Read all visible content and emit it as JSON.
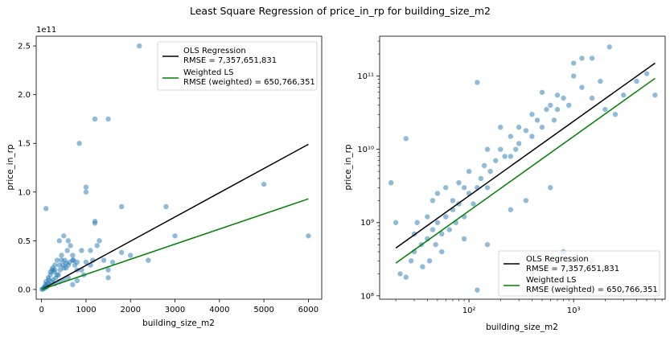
{
  "figure": {
    "title": "Least Square Regression of price_in_rp for building_size_m2"
  },
  "colors": {
    "points": "#1f77b4",
    "ols": "#000000",
    "wls": "#008000",
    "axes": "#000000",
    "background": "#ffffff"
  },
  "legend": {
    "ols_line1": "OLS Regression",
    "ols_line2": "RMSE = 7,357,651,831",
    "wls_line1": "Weighted LS",
    "wls_line2": "RMSE (weighted) = 650,766,351"
  },
  "chart_data": [
    {
      "type": "scatter",
      "title": "",
      "xlabel": "building_size_m2",
      "ylabel": "price_in_rp",
      "xlim": [
        -120,
        6300
      ],
      "ylim": [
        -0.1,
        2.6
      ],
      "y_offset_label": "1e11",
      "x_ticks": [
        "0",
        "1000",
        "2000",
        "3000",
        "4000",
        "5000",
        "6000"
      ],
      "y_ticks": [
        "0.0",
        "0.5",
        "1.0",
        "1.5",
        "2.0",
        "2.5"
      ],
      "y_unit": "1e11 rp",
      "legend_position": "top-right",
      "grid": false,
      "series": [
        {
          "name": "OLS Regression",
          "kind": "line",
          "x": [
            20,
            6000
          ],
          "y": [
            0.003,
            1.49
          ]
        },
        {
          "name": "Weighted LS",
          "kind": "line",
          "x": [
            20,
            6000
          ],
          "y": [
            0.003,
            0.93
          ]
        },
        {
          "kind": "points",
          "x": [
            10,
            30,
            50,
            60,
            80,
            90,
            100,
            120,
            140,
            160,
            180,
            200,
            220,
            240,
            260,
            280,
            300,
            320,
            350,
            380,
            400,
            420,
            450,
            480,
            500,
            520,
            550,
            580,
            600,
            630,
            650,
            700,
            720,
            750,
            800,
            850,
            900,
            950,
            1000,
            1100,
            1150,
            1200,
            1250,
            1300,
            1400,
            1500,
            1600,
            1800,
            2000,
            2400,
            2800,
            3000,
            5000,
            6000,
            100,
            150,
            200,
            250,
            300,
            350,
            400,
            450,
            500,
            550,
            600,
            700,
            800,
            900,
            1000,
            1100,
            1200,
            1500,
            1800,
            2200,
            100,
            300,
            400,
            500,
            600,
            700,
            800,
            1000,
            1200,
            1500
          ],
          "y": [
            0.002,
            0.005,
            0.01,
            0.02,
            0.03,
            0.05,
            0.08,
            0.03,
            0.06,
            0.1,
            0.05,
            0.15,
            0.08,
            0.2,
            0.1,
            0.18,
            0.25,
            0.12,
            0.3,
            0.15,
            0.5,
            0.2,
            0.35,
            0.25,
            0.55,
            0.3,
            0.22,
            0.4,
            0.5,
            0.28,
            0.45,
            0.35,
            0.3,
            0.25,
            0.2,
            1.5,
            0.4,
            0.15,
            1.05,
            0.25,
            0.3,
            0.7,
            0.45,
            0.5,
            0.3,
            0.2,
            0.28,
            0.85,
            0.35,
            0.3,
            0.85,
            0.55,
            1.08,
            0.55,
            0.83,
            0.12,
            0.18,
            0.22,
            0.2,
            0.15,
            0.25,
            0.3,
            0.22,
            0.27,
            0.25,
            0.3,
            0.28,
            0.2,
            1.0,
            0.4,
            1.75,
            1.75,
            0.38,
            2.5,
            0.02,
            0.06,
            0.08,
            0.1,
            0.12,
            0.05,
            0.09,
            0.28,
            0.68,
            0.12
          ]
        }
      ]
    },
    {
      "type": "scatter",
      "title": "",
      "xlabel": "building_size_m2",
      "ylabel": "price_in_rp",
      "xscale": "log",
      "yscale": "log",
      "xlim": [
        14,
        7500
      ],
      "ylim": [
        90000000,
        350000000000
      ],
      "x_ticks": [
        "10²",
        "10³"
      ],
      "y_ticks": [
        "10⁸",
        "10⁹",
        "10¹⁰",
        "10¹¹"
      ],
      "legend_position": "lower-right",
      "grid": false,
      "series": [
        {
          "name": "OLS Regression",
          "kind": "line",
          "x": [
            20,
            6000
          ],
          "y": [
            450000000,
            150000000000
          ]
        },
        {
          "name": "Weighted LS",
          "kind": "line",
          "x": [
            20,
            6000
          ],
          "y": [
            280000000,
            93000000000
          ]
        },
        {
          "kind": "points",
          "x": [
            18,
            20,
            22,
            25,
            25,
            28,
            30,
            30,
            32,
            35,
            36,
            40,
            40,
            42,
            45,
            45,
            48,
            50,
            50,
            55,
            55,
            60,
            60,
            65,
            70,
            70,
            75,
            80,
            80,
            90,
            90,
            100,
            100,
            110,
            120,
            120,
            130,
            140,
            150,
            150,
            160,
            180,
            200,
            200,
            220,
            250,
            250,
            280,
            300,
            300,
            350,
            400,
            400,
            450,
            500,
            500,
            550,
            600,
            650,
            700,
            700,
            800,
            900,
            1000,
            1000,
            1200,
            1200,
            1500,
            1500,
            1800,
            2000,
            2200,
            2500,
            3000,
            4000,
            5000,
            6000,
            120,
            400,
            650,
            800,
            1500,
            90,
            150,
            250,
            350,
            600
          ],
          "y": [
            3500000000,
            1000000000,
            200000000,
            14000000000,
            180000000,
            300000000,
            700000000,
            400000000,
            1000000000,
            500000000,
            250000000,
            1200000000,
            600000000,
            300000000,
            2000000000,
            800000000,
            500000000,
            2500000000,
            1000000000,
            700000000,
            400000000,
            3000000000,
            1200000000,
            800000000,
            2000000000,
            1500000000,
            1000000000,
            3500000000,
            1800000000,
            3000000000,
            1200000000,
            5000000000,
            2500000000,
            1800000000,
            3000000000,
            82000000000,
            4000000000,
            6000000000,
            10000000000,
            3000000000,
            5000000000,
            7000000000,
            10000000000,
            20000000000,
            8000000000,
            15000000000,
            8000000000,
            10000000000,
            20000000000,
            12000000000,
            18000000000,
            30000000000,
            15000000000,
            25000000000,
            60000000000,
            20000000000,
            35000000000,
            40000000000,
            25000000000,
            55000000000,
            35000000000,
            50000000000,
            40000000000,
            100000000000,
            150000000000,
            70000000000,
            175000000000,
            175000000000,
            50000000000,
            85000000000,
            35000000000,
            250000000000,
            30000000000,
            55000000000,
            85000000000,
            108000000000,
            55000000000,
            120000000,
            200000000,
            150000000,
            400000000,
            300000000,
            600000000,
            500000000,
            1500000000,
            2000000000,
            3000000000
          ]
        }
      ]
    }
  ]
}
